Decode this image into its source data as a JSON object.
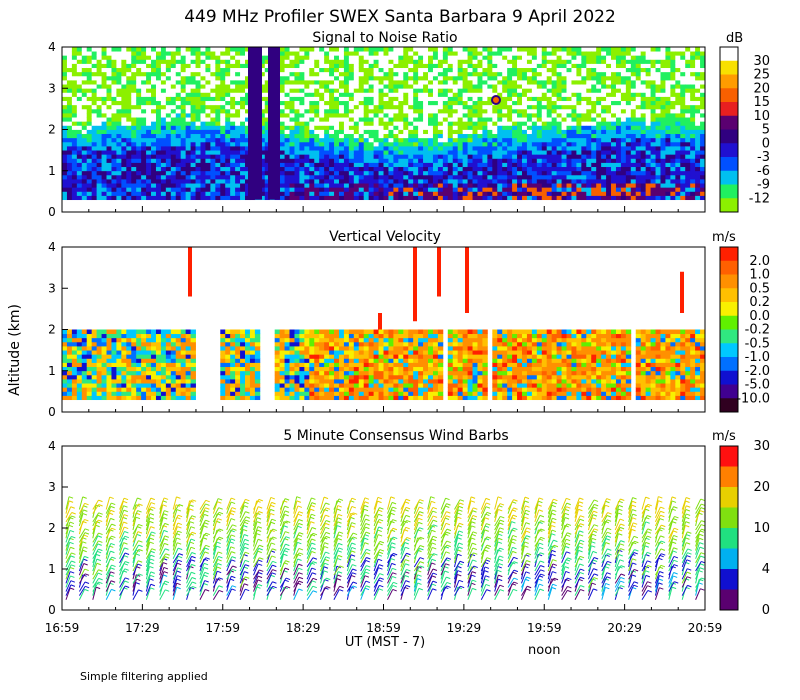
{
  "title": "449 MHz Profiler SWEX Santa Barbara  9 April 2022",
  "ylabel": "Altitude (km)",
  "footnote": "Simple filtering applied",
  "xaxis": {
    "ticks": [
      "16:59",
      "17:29",
      "17:59",
      "18:29",
      "18:59",
      "19:29",
      "19:59",
      "20:29",
      "20:59"
    ],
    "label": "UT  (MST - 7)",
    "noon_label": "noon",
    "noon_tick_index": 6,
    "range_minutes": [
      0,
      240
    ]
  },
  "colors": {
    "snr": [
      "#8cf000",
      "#20f060",
      "#00c0f0",
      "#0050ff",
      "#2010d0",
      "#300080",
      "#5a0070",
      "#e82020",
      "#f86000",
      "#ff9c00",
      "#f8e000",
      "#ffffff"
    ],
    "velocity": [
      "#300020",
      "#400090",
      "#1010d0",
      "#0070ff",
      "#00c8ff",
      "#30e880",
      "#60f000",
      "#f8f000",
      "#ffc000",
      "#ff9000",
      "#ff6000",
      "#ff2000"
    ],
    "wind": [
      "#5a0070",
      "#1010d0",
      "#00b0f0",
      "#20e080",
      "#80e010",
      "#e8d000",
      "#ff8000",
      "#ff1010"
    ]
  },
  "chart_data": [
    {
      "type": "heatmap",
      "title": "Signal to Noise Ratio",
      "ylabel": "Altitude (km)",
      "ylim": [
        0,
        4
      ],
      "yticks": [
        0,
        1,
        2,
        3,
        4
      ],
      "colorbar_unit": "dB",
      "colorbar_labels": [
        "30",
        "25",
        "20",
        "15",
        "10",
        "5",
        "0",
        "-3",
        "-6",
        "-9",
        "-12"
      ],
      "colorbar_values": [
        30,
        25,
        20,
        15,
        10,
        5,
        0,
        -3,
        -6,
        -9,
        -12
      ],
      "data_altitude_km": [
        0.3,
        4.0
      ]
    },
    {
      "type": "heatmap",
      "title": "Vertical Velocity",
      "ylabel": "Altitude (km)",
      "ylim": [
        0,
        4
      ],
      "yticks": [
        0,
        1,
        2,
        3,
        4
      ],
      "colorbar_unit": "m/s",
      "colorbar_labels": [
        "2.0",
        "1.0",
        "0.5",
        "0.2",
        "0.0",
        "-0.2",
        "-0.5",
        "-1.0",
        "-2.0",
        "-5.0",
        "-10.0"
      ],
      "colorbar_values": [
        2.0,
        1.0,
        0.5,
        0.2,
        0.0,
        -0.2,
        -0.5,
        -1.0,
        -2.0,
        -5.0,
        -10.0
      ],
      "data_altitude_km": [
        0.3,
        2.0
      ]
    },
    {
      "type": "scatter",
      "title": "5 Minute Consensus Wind Barbs",
      "ylabel": "Altitude (km)",
      "ylim": [
        0,
        4
      ],
      "yticks": [
        0,
        1,
        2,
        3,
        4
      ],
      "colorbar_unit": "m/s",
      "colorbar_labels": [
        "30",
        "20",
        "10",
        "4",
        "0"
      ],
      "colorbar_values": [
        30,
        20,
        10,
        4,
        0
      ],
      "interval_minutes": 5,
      "altitude_km": [
        0.25,
        2.5
      ]
    }
  ]
}
